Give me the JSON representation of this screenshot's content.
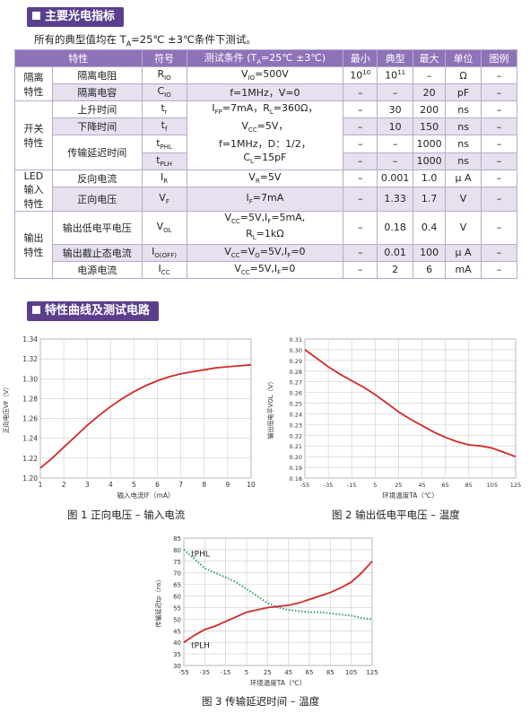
{
  "section1": {
    "title": "主要光电指标"
  },
  "note": "所有的典型值均在 TA=25℃ ±3℃条件下测试。",
  "table": {
    "headers": [
      "特性",
      "符号",
      "测试条件 (TA=25℃ ±3℃)",
      "最小",
      "典型",
      "最大",
      "单位",
      "图例"
    ],
    "groups": {
      "isolation": "隔离特性",
      "switching": "开关特性",
      "led": "LED输入特性",
      "output": "输出特性"
    },
    "rows": [
      {
        "name": "隔离电阻",
        "sym": "RIO",
        "cond": "VIO=500V",
        "min": "10^10",
        "typ": "10^11",
        "max": "–",
        "unit": "Ω",
        "fig": "–"
      },
      {
        "name": "隔离电容",
        "sym": "CIO",
        "cond": "f=1MHz，V=0",
        "min": "–",
        "typ": "–",
        "max": "20",
        "unit": "pF",
        "fig": "–"
      },
      {
        "name": "上升时间",
        "sym": "tr",
        "min": "–",
        "typ": "30",
        "max": "200",
        "unit": "ns",
        "fig": "–"
      },
      {
        "name": "下降时间",
        "sym": "tf",
        "min": "–",
        "typ": "10",
        "max": "150",
        "unit": "ns",
        "fig": "–"
      },
      {
        "name": "传输延迟时间",
        "sym1": "tPHL",
        "sym2": "tPLH",
        "min": "–",
        "typ": "–",
        "max1": "1000",
        "max2": "1000",
        "unit": "ns",
        "fig": "–"
      },
      {
        "name": "反向电流",
        "sym": "IR",
        "cond": "VR=5V",
        "min": "–",
        "typ": "0.001",
        "max": "1.0",
        "unit": "μ A",
        "fig": "–"
      },
      {
        "name": "正向电压",
        "sym": "VF",
        "cond": "IF=7mA",
        "min": "–",
        "typ": "1.33",
        "max": "1.7",
        "unit": "V",
        "fig": "–"
      },
      {
        "name": "输出低电平电压",
        "sym": "VOL",
        "cond": "VCC=5V,IF=5mA, RL=1kΩ",
        "min": "–",
        "typ": "0.18",
        "max": "0.4",
        "unit": "V",
        "fig": "–"
      },
      {
        "name": "输出截止态电流",
        "sym": "IO(OFF)",
        "cond": "VCC=VO=5V,IF=0",
        "min": "–",
        "typ": "0.01",
        "max": "100",
        "unit": "μ A",
        "fig": "–"
      },
      {
        "name": "电源电流",
        "sym": "ICC",
        "cond": "VCC=5V,IF=0",
        "min": "–",
        "typ": "2",
        "max": "6",
        "unit": "mA",
        "fig": "–"
      }
    ],
    "switch_cond": "IFP=7mA，RL=360Ω，VCC=5V，f=1MHz，D：1/2，CL=15pF"
  },
  "section2": {
    "title": "特性曲线及测试电路"
  },
  "chart_data": [
    {
      "type": "line",
      "title": "图 1 正向电压 – 输入电流",
      "xlabel": "输入电流IF（mA）",
      "ylabel": "正向电压VF（V）",
      "xlim": [
        1,
        10
      ],
      "ylim": [
        1.2,
        1.34
      ],
      "xticks": [
        1,
        2,
        3,
        4,
        5,
        6,
        7,
        8,
        9,
        10
      ],
      "yticks": [
        1.2,
        1.22,
        1.24,
        1.26,
        1.28,
        1.3,
        1.32,
        1.34
      ],
      "grid": true,
      "series": [
        {
          "x": [
            1,
            1.5,
            2,
            2.5,
            3,
            3.5,
            4,
            4.5,
            5,
            5.5,
            6,
            6.5,
            7,
            7.5,
            8,
            8.5,
            9,
            9.5,
            10
          ],
          "y": [
            1.21,
            1.22,
            1.231,
            1.242,
            1.253,
            1.263,
            1.272,
            1.28,
            1.287,
            1.293,
            1.298,
            1.302,
            1.305,
            1.307,
            1.309,
            1.311,
            1.312,
            1.313,
            1.314
          ]
        }
      ]
    },
    {
      "type": "line",
      "title": "图 2 输出低电平电压 – 温度",
      "xlabel": "环境温度TA（℃）",
      "ylabel": "输出低电平VOL（V）",
      "xlim": [
        -55,
        125
      ],
      "ylim": [
        0.18,
        0.31
      ],
      "xticks": [
        -55,
        -35,
        -15,
        5,
        25,
        45,
        65,
        85,
        105,
        125
      ],
      "yticks": [
        0.18,
        0.19,
        0.2,
        0.21,
        0.22,
        0.23,
        0.24,
        0.25,
        0.26,
        0.27,
        0.28,
        0.29,
        0.3,
        0.31
      ],
      "grid": true,
      "series": [
        {
          "x": [
            -55,
            -45,
            -35,
            -25,
            -15,
            -5,
            5,
            15,
            25,
            35,
            45,
            55,
            65,
            75,
            85,
            95,
            105,
            115,
            125
          ],
          "y": [
            0.3,
            0.292,
            0.284,
            0.277,
            0.271,
            0.265,
            0.258,
            0.25,
            0.242,
            0.235,
            0.229,
            0.223,
            0.218,
            0.214,
            0.211,
            0.21,
            0.208,
            0.204,
            0.2
          ]
        }
      ]
    },
    {
      "type": "line",
      "title": "图 3 传输延迟时间 – 温度",
      "xlabel": "环境温度TA（℃）",
      "ylabel": "传输延迟tp（ns）",
      "xlim": [
        -55,
        125
      ],
      "ylim": [
        30,
        85
      ],
      "xticks": [
        -55,
        -35,
        -15,
        5,
        25,
        45,
        65,
        85,
        105,
        125
      ],
      "yticks": [
        30,
        35,
        40,
        45,
        50,
        55,
        60,
        65,
        70,
        75,
        80,
        85
      ],
      "grid": true,
      "series": [
        {
          "name": "tPHL",
          "style": "dotted",
          "color": "#2a9b8a",
          "x": [
            -55,
            -45,
            -35,
            -25,
            -15,
            -5,
            5,
            15,
            25,
            35,
            45,
            55,
            65,
            75,
            85,
            95,
            105,
            115,
            125
          ],
          "y": [
            80,
            76,
            72,
            70,
            68,
            66,
            63,
            60,
            57,
            55,
            54,
            53.5,
            53,
            53,
            52.5,
            52,
            51.5,
            50.5,
            50
          ]
        },
        {
          "name": "tPLH",
          "style": "solid",
          "color": "#d22a2a",
          "x": [
            -55,
            -45,
            -35,
            -25,
            -15,
            -5,
            5,
            15,
            25,
            35,
            45,
            55,
            65,
            75,
            85,
            95,
            105,
            115,
            125
          ],
          "y": [
            40,
            43,
            45.5,
            47,
            49,
            51,
            53,
            54,
            55,
            55.5,
            56,
            57,
            58.5,
            60,
            61.5,
            63.5,
            66,
            70,
            75
          ]
        }
      ]
    }
  ]
}
